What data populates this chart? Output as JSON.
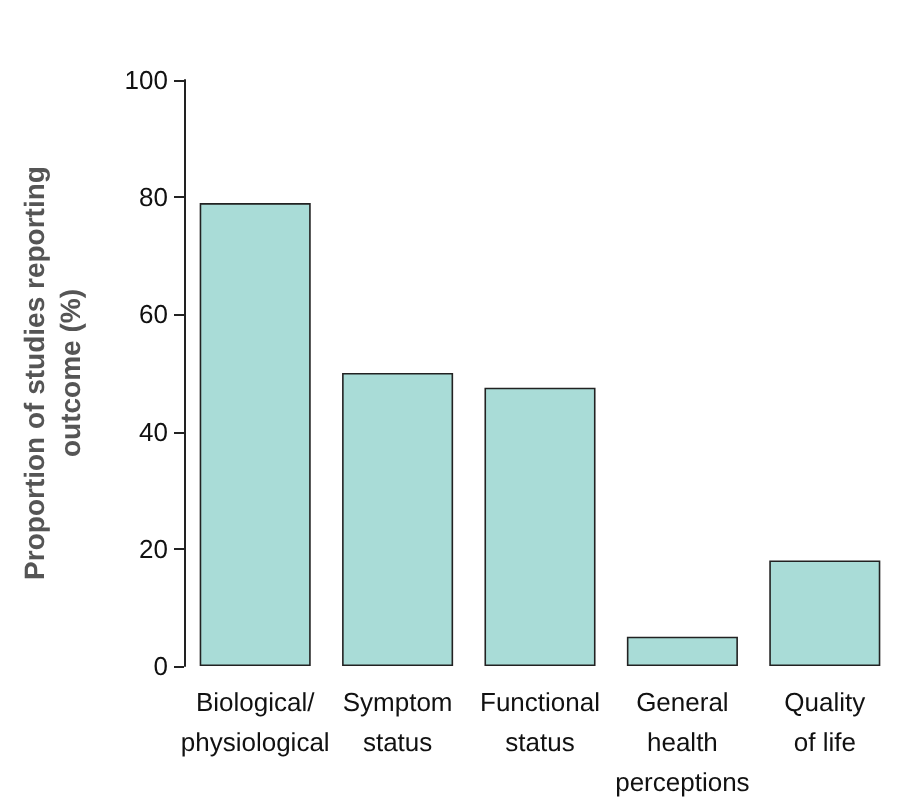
{
  "chart_data": {
    "type": "bar",
    "ylabel": "Proportion of studies reporting\noutcome (%)",
    "categories": [
      "Biological/\nphysiological",
      "Symptom\nstatus",
      "Functional\nstatus",
      "General\nhealth\nperceptions",
      "Quality\nof life"
    ],
    "values": [
      79,
      50,
      47.5,
      5,
      18
    ],
    "color": "#a9dcd7",
    "ylim": [
      0,
      100
    ],
    "yticks": [
      0,
      20,
      40,
      60,
      80,
      100
    ],
    "grid": false
  }
}
